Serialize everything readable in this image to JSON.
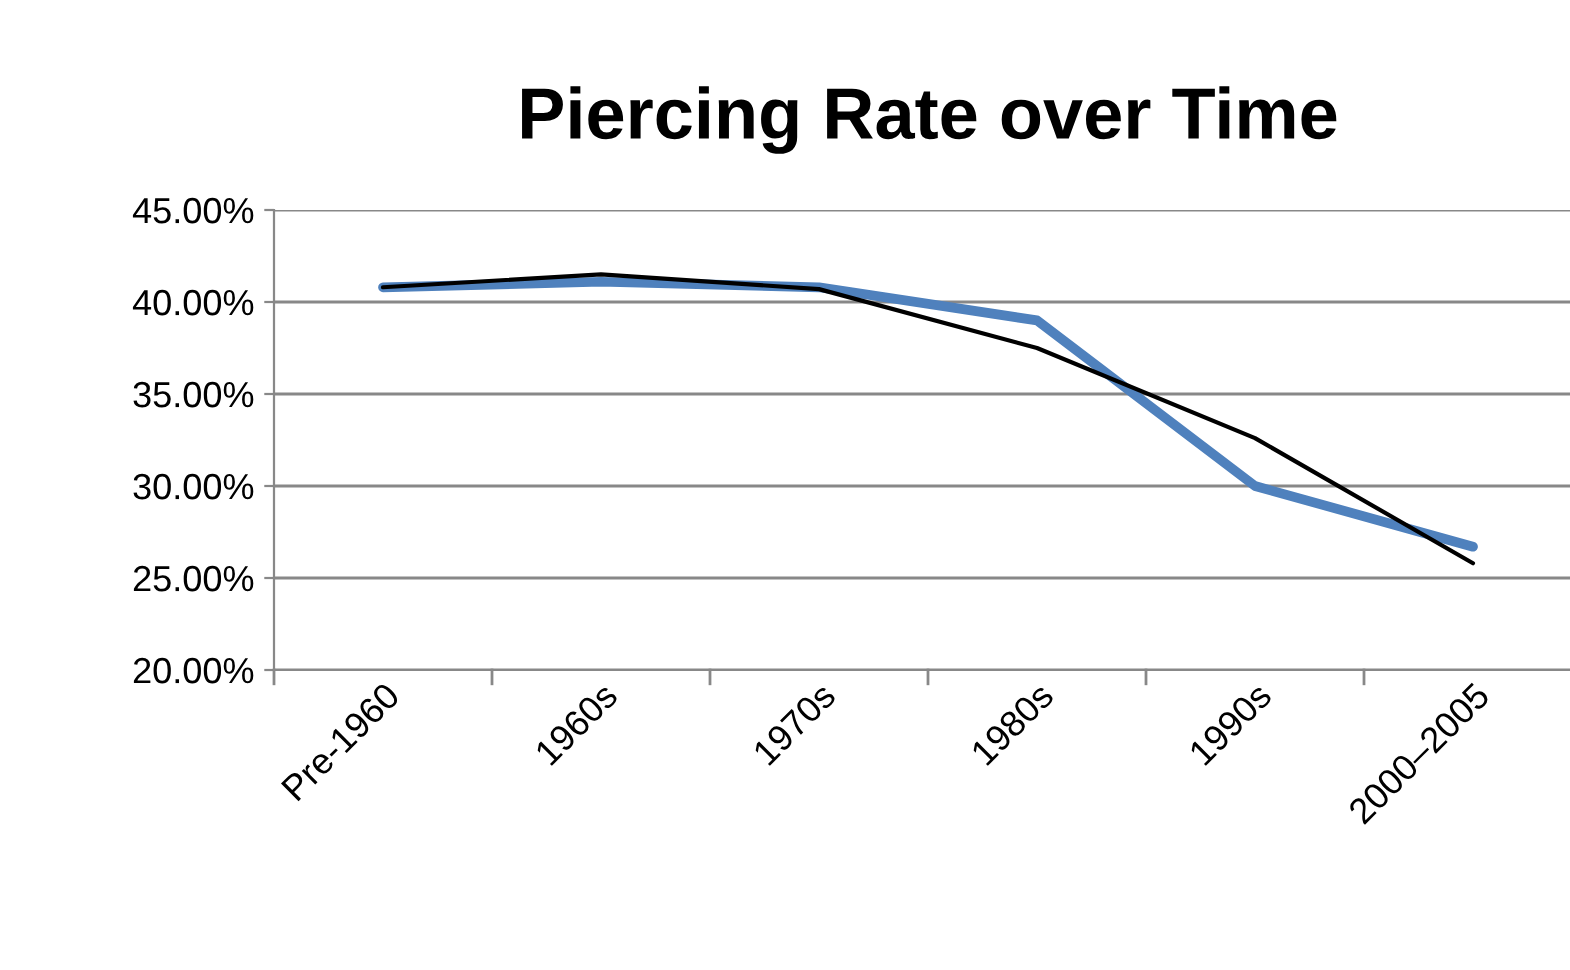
{
  "chart_data": {
    "type": "line",
    "title": "Piercing Rate over Time",
    "categories": [
      "Pre-1960",
      "1960s",
      "1970s",
      "1980s",
      "1990s",
      "2000–2005"
    ],
    "series": [
      {
        "color": "#4f81bd",
        "values": [
          40.8,
          41.1,
          40.8,
          39.0,
          30.0,
          26.7
        ]
      },
      {
        "type": "line",
        "color": "#000000",
        "values": [
          40.8,
          41.5,
          40.7,
          37.5,
          32.6,
          25.8
        ]
      }
    ],
    "ylim": [
      20,
      45
    ],
    "yticks": [
      {
        "value": 20,
        "label": "20.00%"
      },
      {
        "value": 25,
        "label": "25.00%"
      },
      {
        "value": 30,
        "label": "30.00%"
      },
      {
        "value": 35,
        "label": "35.00%"
      },
      {
        "value": 40,
        "label": "40.00%"
      },
      {
        "value": 45,
        "label": "45.00%"
      }
    ],
    "grid": "y",
    "marker": "none",
    "line_style": "solid"
  }
}
